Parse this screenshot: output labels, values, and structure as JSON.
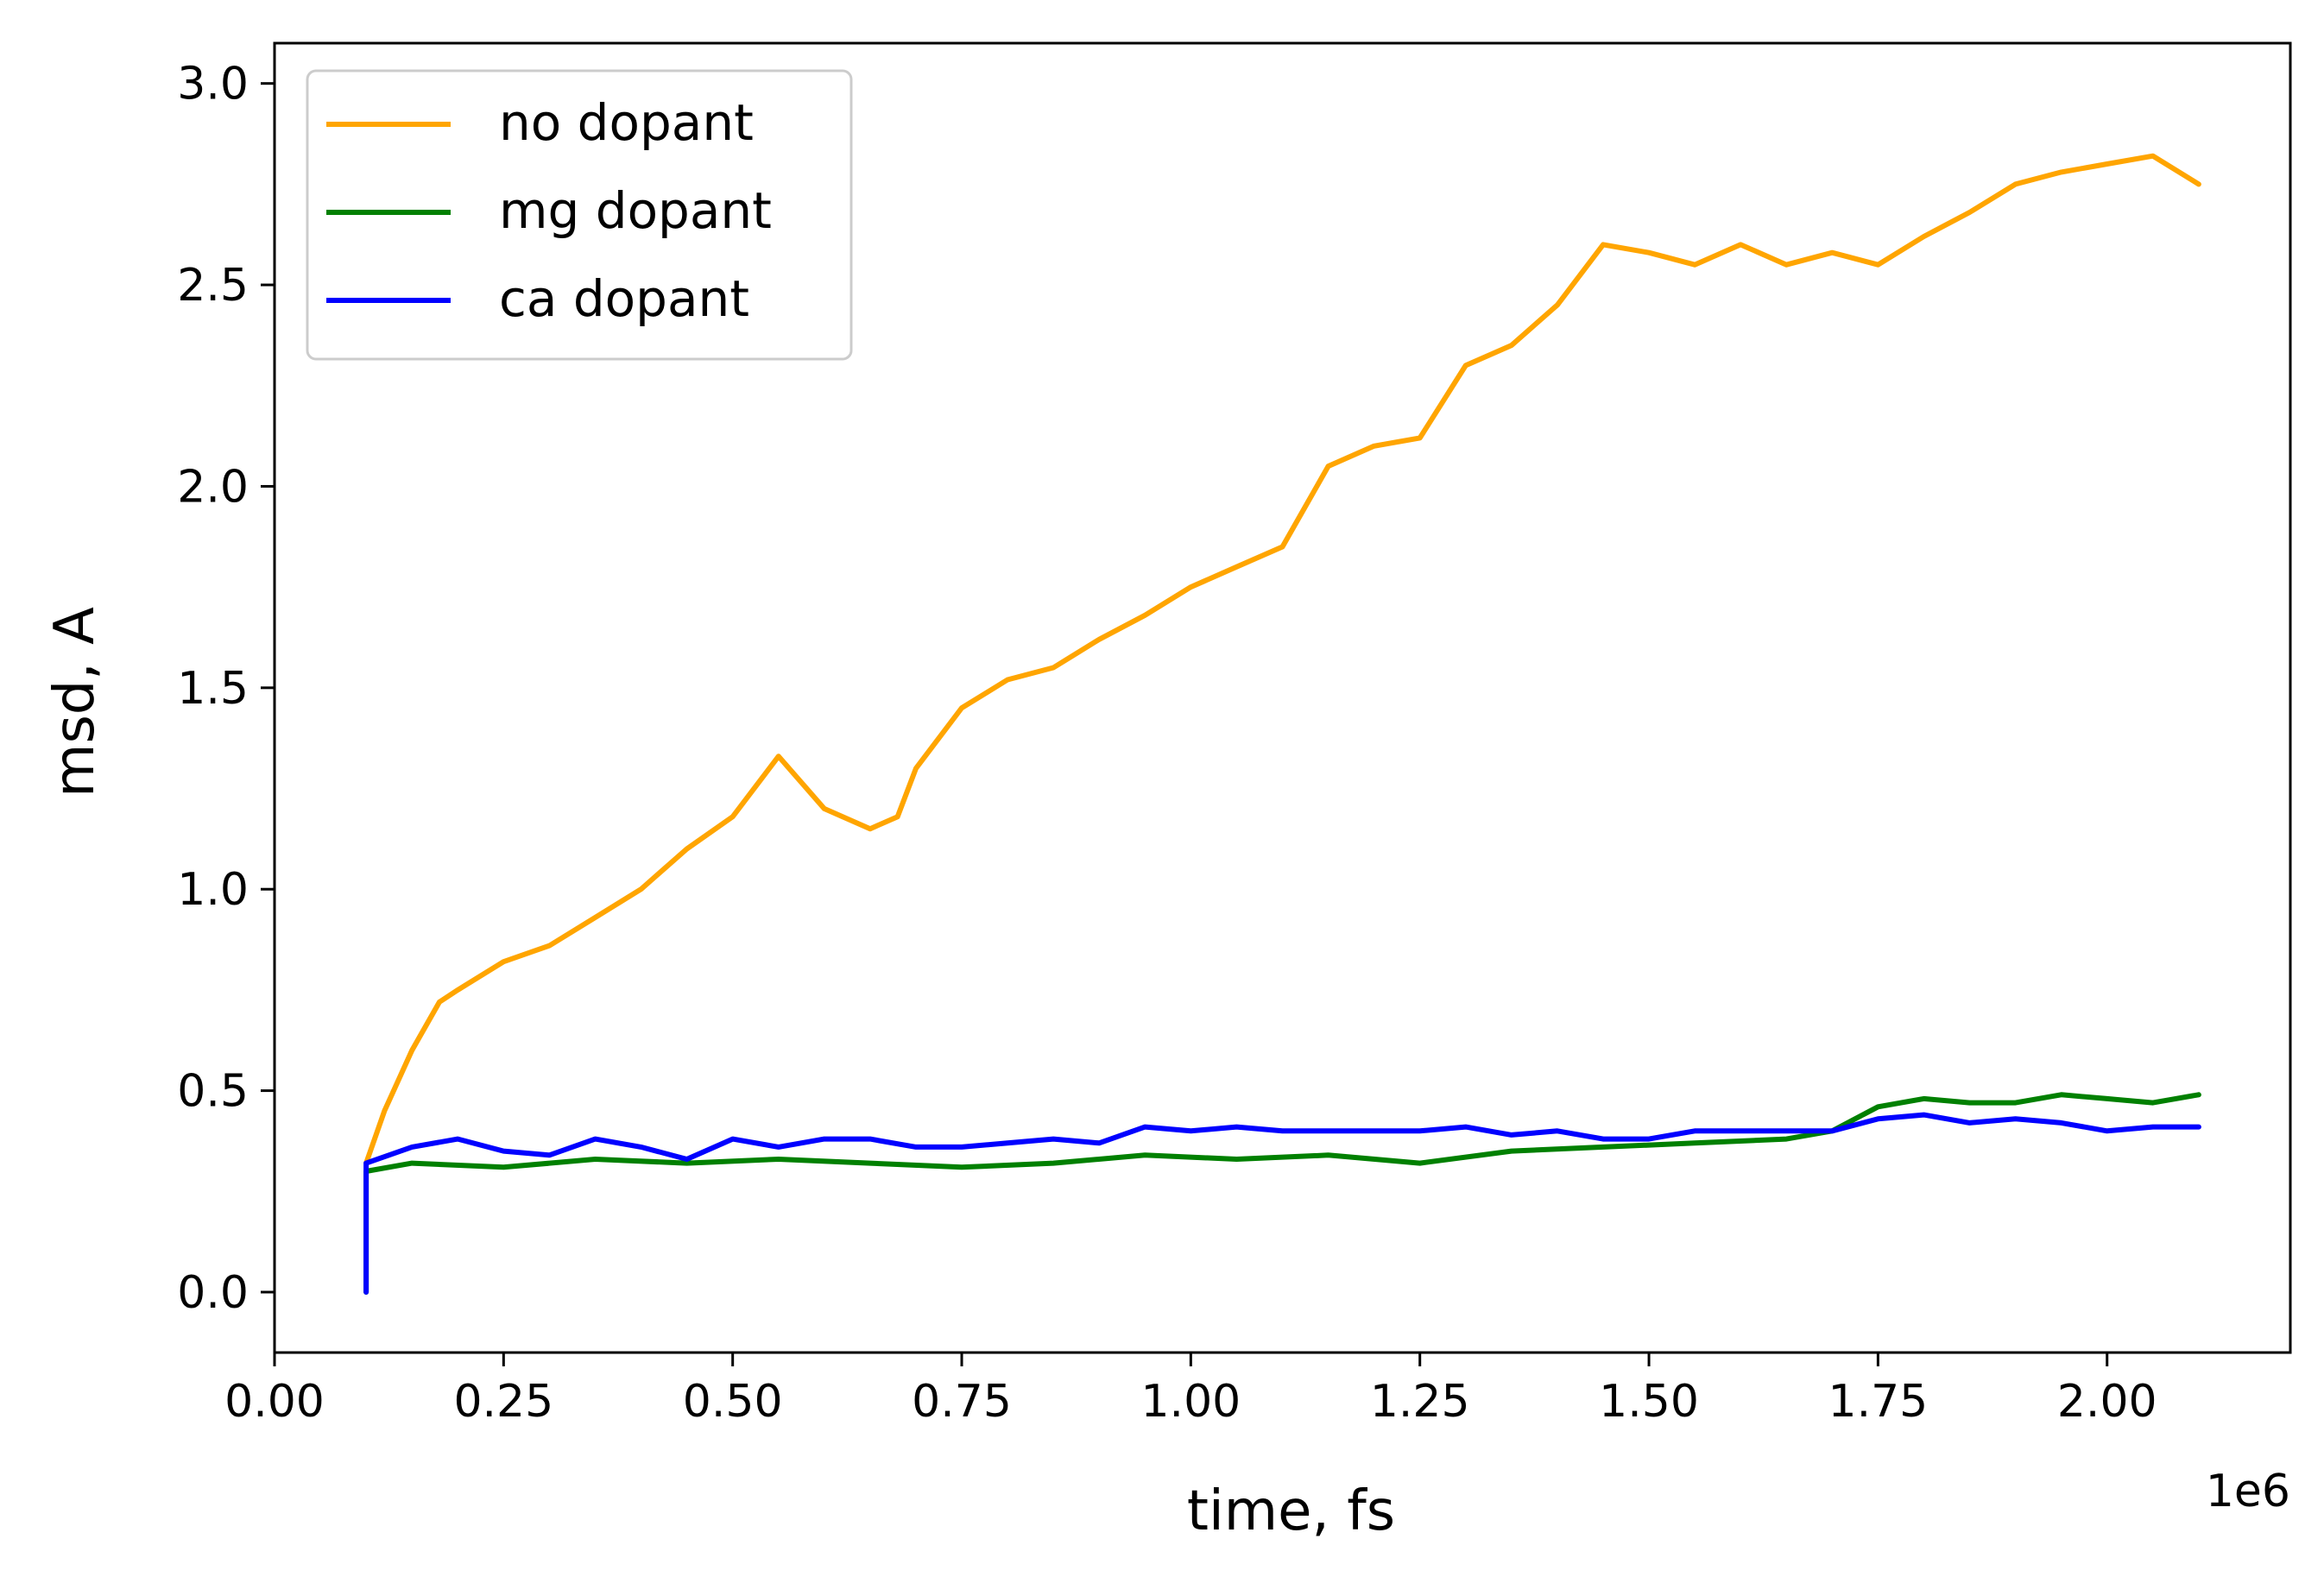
{
  "chart_data": {
    "type": "line",
    "title": "",
    "xlabel": "time, fs",
    "ylabel": "msd, A",
    "x_offset_label": "1e6",
    "xlim": [
      0.0,
      2.2
    ],
    "ylim": [
      -0.15,
      3.1
    ],
    "xticks": [
      0.0,
      0.25,
      0.5,
      0.75,
      1.0,
      1.25,
      1.5,
      1.75,
      2.0
    ],
    "xtick_labels": [
      "0.00",
      "0.25",
      "0.50",
      "0.75",
      "1.00",
      "1.25",
      "1.50",
      "1.75",
      "2.00"
    ],
    "yticks": [
      0.0,
      0.5,
      1.0,
      1.5,
      2.0,
      2.5,
      3.0
    ],
    "ytick_labels": [
      "0.0",
      "0.5",
      "1.0",
      "1.5",
      "2.0",
      "2.5",
      "3.0"
    ],
    "grid": false,
    "legend_position": "top-left",
    "series": [
      {
        "name": "no dopant",
        "color": "#FFA500",
        "x": [
          0.1,
          0.12,
          0.15,
          0.18,
          0.2,
          0.25,
          0.3,
          0.35,
          0.4,
          0.45,
          0.5,
          0.55,
          0.6,
          0.65,
          0.68,
          0.7,
          0.75,
          0.8,
          0.85,
          0.9,
          0.95,
          1.0,
          1.05,
          1.1,
          1.15,
          1.2,
          1.25,
          1.3,
          1.35,
          1.4,
          1.45,
          1.5,
          1.55,
          1.6,
          1.65,
          1.7,
          1.75,
          1.8,
          1.85,
          1.9,
          1.95,
          2.0,
          2.05,
          2.1
        ],
        "y": [
          0.32,
          0.45,
          0.6,
          0.72,
          0.75,
          0.82,
          0.86,
          0.93,
          1.0,
          1.1,
          1.18,
          1.33,
          1.2,
          1.15,
          1.18,
          1.3,
          1.45,
          1.52,
          1.55,
          1.62,
          1.68,
          1.75,
          1.8,
          1.85,
          2.05,
          2.1,
          2.12,
          2.3,
          2.35,
          2.45,
          2.6,
          2.58,
          2.55,
          2.6,
          2.55,
          2.58,
          2.55,
          2.62,
          2.68,
          2.75,
          2.78,
          2.8,
          2.82,
          2.75
        ]
      },
      {
        "name": "mg dopant",
        "color": "#008000",
        "x": [
          0.1,
          0.1,
          0.15,
          0.25,
          0.35,
          0.45,
          0.55,
          0.65,
          0.75,
          0.85,
          0.95,
          1.05,
          1.15,
          1.25,
          1.35,
          1.45,
          1.55,
          1.65,
          1.7,
          1.75,
          1.8,
          1.85,
          1.9,
          1.95,
          2.0,
          2.05,
          2.1
        ],
        "y": [
          0.0,
          0.3,
          0.32,
          0.31,
          0.33,
          0.32,
          0.33,
          0.32,
          0.31,
          0.32,
          0.34,
          0.33,
          0.34,
          0.32,
          0.35,
          0.36,
          0.37,
          0.38,
          0.4,
          0.46,
          0.48,
          0.47,
          0.47,
          0.49,
          0.48,
          0.47,
          0.49
        ]
      },
      {
        "name": "ca dopant",
        "color": "#0000FF",
        "x": [
          0.1,
          0.1,
          0.15,
          0.2,
          0.25,
          0.3,
          0.35,
          0.4,
          0.45,
          0.5,
          0.55,
          0.6,
          0.65,
          0.7,
          0.75,
          0.8,
          0.85,
          0.9,
          0.95,
          1.0,
          1.05,
          1.1,
          1.15,
          1.2,
          1.25,
          1.3,
          1.35,
          1.4,
          1.45,
          1.5,
          1.55,
          1.6,
          1.65,
          1.7,
          1.75,
          1.8,
          1.85,
          1.9,
          1.95,
          2.0,
          2.05,
          2.1
        ],
        "y": [
          0.0,
          0.32,
          0.36,
          0.38,
          0.35,
          0.34,
          0.38,
          0.36,
          0.33,
          0.38,
          0.36,
          0.38,
          0.38,
          0.36,
          0.36,
          0.37,
          0.38,
          0.37,
          0.41,
          0.4,
          0.41,
          0.4,
          0.4,
          0.4,
          0.4,
          0.41,
          0.39,
          0.4,
          0.38,
          0.38,
          0.4,
          0.4,
          0.4,
          0.4,
          0.43,
          0.44,
          0.42,
          0.43,
          0.42,
          0.4,
          0.41,
          0.41
        ]
      }
    ]
  }
}
